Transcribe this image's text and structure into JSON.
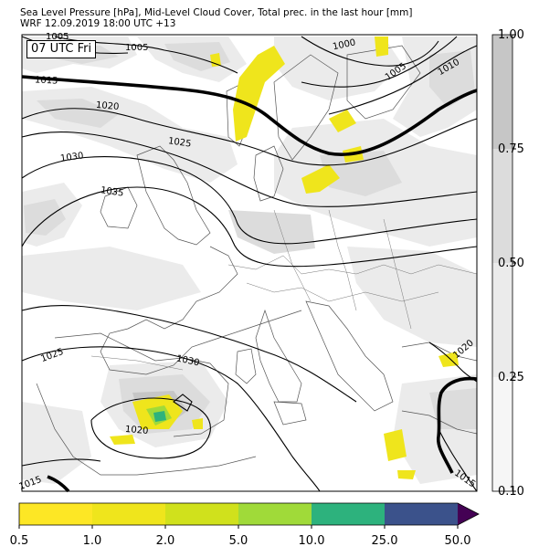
{
  "title": {
    "line1": "Sea Level Pressure [hPa], Mid-Level Cloud Cover, Total prec. in the last hour [mm]",
    "line2": "WRF 12.09.2019 18:00 UTC +13"
  },
  "valid_time": "07 UTC Fri",
  "cloud_colorbar": {
    "ticks": [
      "1.00",
      "0.75",
      "0.50",
      "0.25",
      "0.10"
    ],
    "fill_colors": [
      "#c6c6c6",
      "#dcdcdc",
      "#ebebeb",
      "#f6f6f6"
    ]
  },
  "precip_colorbar": {
    "ticks": [
      "0.5",
      "1.0",
      "2.0",
      "5.0",
      "10.0",
      "25.0",
      "50.0"
    ],
    "colors": [
      "#fde725",
      "#efe51c",
      "#d0e11c",
      "#a0da39",
      "#2db27d",
      "#3b528b",
      "#440154"
    ],
    "extend": "max"
  },
  "isobar_labels": [
    "1005",
    "1005",
    "1000",
    "1005",
    "1010",
    "1015",
    "1020",
    "1025",
    "1030",
    "1035",
    "1025",
    "1030",
    "1020",
    "1020",
    "1015",
    "1015"
  ],
  "colors": {
    "land_line": "#555555",
    "isobar": "#000000",
    "cloud_light": "#ebebeb",
    "cloud_mid": "#dcdcdc",
    "cloud_dark": "#c6c6c6"
  }
}
